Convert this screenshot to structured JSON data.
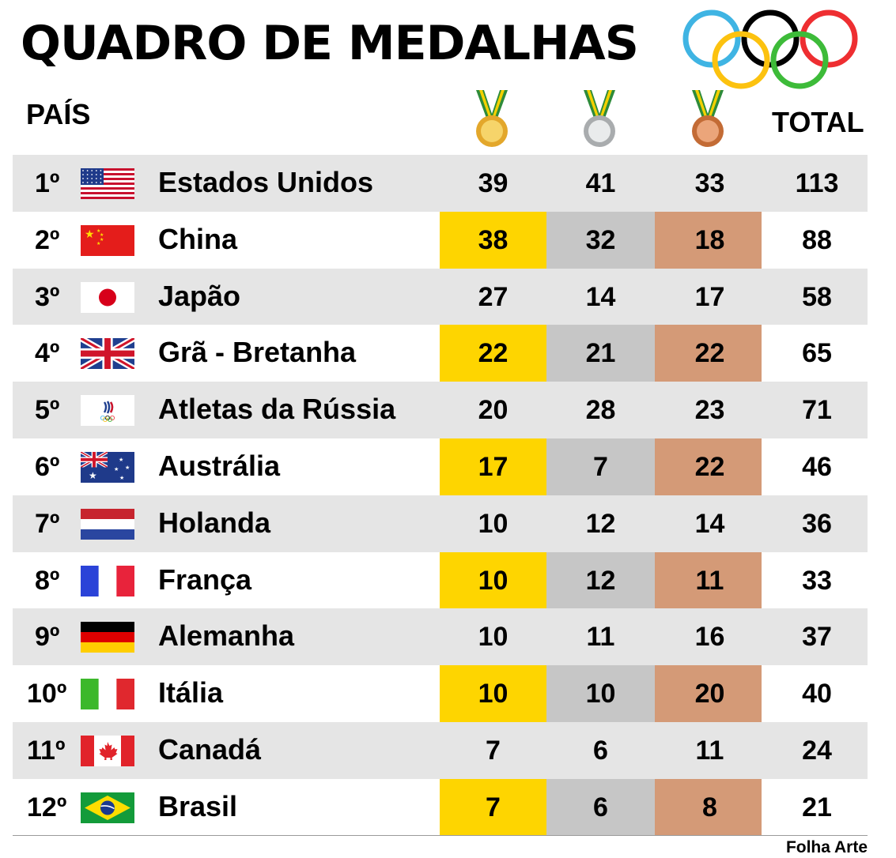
{
  "title": "QUADRO DE MEDALHAS",
  "headers": {
    "country": "PAÍS",
    "total": "TOTAL"
  },
  "medal_icons": [
    "gold-medal-icon",
    "silver-medal-icon",
    "bronze-medal-icon"
  ],
  "colors": {
    "gold": "#fed500",
    "silver": "#c6c6c6",
    "bronze": "#d49a77",
    "row_shade": "#e5e5e5",
    "rings": [
      "#3fb4e3",
      "#000000",
      "#ee2e31",
      "#fcc20f",
      "#3dbb39"
    ]
  },
  "credit": "Folha Arte",
  "chart_data": {
    "type": "table",
    "title": "QUADRO DE MEDALHAS",
    "columns": [
      "PAÍS",
      "gold",
      "silver",
      "bronze",
      "TOTAL"
    ],
    "rows": [
      {
        "rank": "1º",
        "flag": "usa-flag-icon",
        "country": "Estados Unidos",
        "gold": "39",
        "silver": "41",
        "bronze": "33",
        "total": "113"
      },
      {
        "rank": "2º",
        "flag": "china-flag-icon",
        "country": "China",
        "gold": "38",
        "silver": "32",
        "bronze": "18",
        "total": "88"
      },
      {
        "rank": "3º",
        "flag": "japan-flag-icon",
        "country": "Japão",
        "gold": "27",
        "silver": "14",
        "bronze": "17",
        "total": "58"
      },
      {
        "rank": "4º",
        "flag": "uk-flag-icon",
        "country": "Grã - Bretanha",
        "gold": "22",
        "silver": "21",
        "bronze": "22",
        "total": "65"
      },
      {
        "rank": "5º",
        "flag": "roc-flag-icon",
        "country": "Atletas da Rússia",
        "gold": "20",
        "silver": "28",
        "bronze": "23",
        "total": "71"
      },
      {
        "rank": "6º",
        "flag": "australia-flag-icon",
        "country": "Austrália",
        "gold": "17",
        "silver": "7",
        "bronze": "22",
        "total": "46"
      },
      {
        "rank": "7º",
        "flag": "netherlands-flag-icon",
        "country": "Holanda",
        "gold": "10",
        "silver": "12",
        "bronze": "14",
        "total": "36"
      },
      {
        "rank": "8º",
        "flag": "france-flag-icon",
        "country": "França",
        "gold": "10",
        "silver": "12",
        "bronze": "11",
        "total": "33"
      },
      {
        "rank": "9º",
        "flag": "germany-flag-icon",
        "country": "Alemanha",
        "gold": "10",
        "silver": "11",
        "bronze": "16",
        "total": "37"
      },
      {
        "rank": "10º",
        "flag": "italy-flag-icon",
        "country": "Itália",
        "gold": "10",
        "silver": "10",
        "bronze": "20",
        "total": "40"
      },
      {
        "rank": "11º",
        "flag": "canada-flag-icon",
        "country": "Canadá",
        "gold": "7",
        "silver": "6",
        "bronze": "11",
        "total": "24"
      },
      {
        "rank": "12º",
        "flag": "brazil-flag-icon",
        "country": "Brasil",
        "gold": "7",
        "silver": "6",
        "bronze": "8",
        "total": "21"
      }
    ]
  }
}
